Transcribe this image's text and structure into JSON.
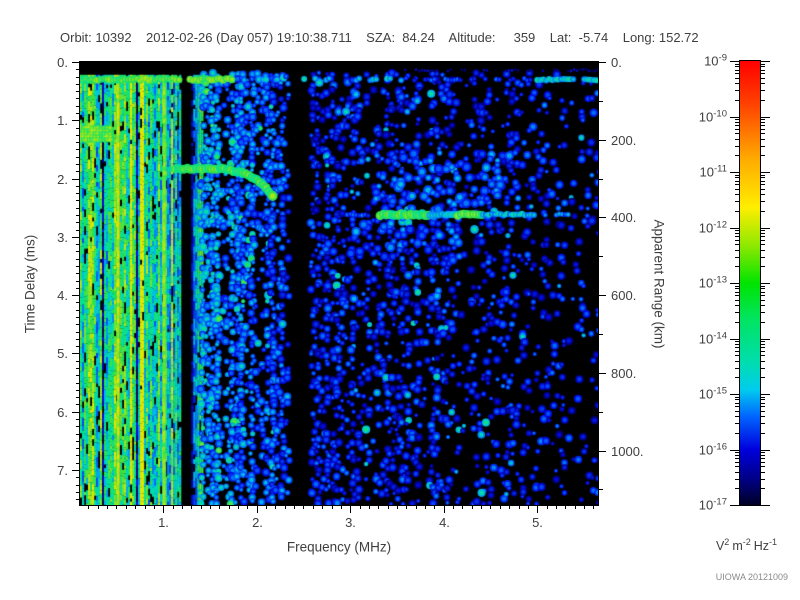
{
  "header": {
    "text": "Orbit: 10392    2012-02-26 (Day 057) 19:10:38.711    SZA:  84.24    Altitude:     359    Lat:  -5.74    Long: 152.72",
    "fields": {
      "orbit": "10392",
      "date": "2012-02-26",
      "day": "057",
      "time": "19:10:38.711",
      "sza": "84.24",
      "altitude": "359",
      "lat": "-5.74",
      "long": "152.72"
    }
  },
  "footer": {
    "watermark": "UIOWA 20121009"
  },
  "chart_data": {
    "type": "heatmap",
    "subtype": "radar-sounder-ionogram-spectrogram",
    "x_axis": {
      "label": "Frequency (MHz)",
      "range": [
        0.11,
        5.65
      ],
      "major_ticks": [
        {
          "v": 1,
          "t": "1."
        },
        {
          "v": 2,
          "t": "2."
        },
        {
          "v": 3,
          "t": "3."
        },
        {
          "v": 4,
          "t": "4."
        },
        {
          "v": 5,
          "t": "5."
        }
      ],
      "minor_step": 0.1
    },
    "y_axis": {
      "label": "Time Delay (ms)",
      "range": [
        0,
        7.6
      ],
      "direction": "down",
      "major_ticks": [
        {
          "v": 0,
          "t": "0."
        },
        {
          "v": 1,
          "t": "1."
        },
        {
          "v": 2,
          "t": "2."
        },
        {
          "v": 3,
          "t": "3."
        },
        {
          "v": 4,
          "t": "4."
        },
        {
          "v": 5,
          "t": "5."
        },
        {
          "v": 6,
          "t": "6."
        },
        {
          "v": 7,
          "t": "7."
        }
      ],
      "minor_step": 0.125
    },
    "r_axis": {
      "label": "Apparent Range (km)",
      "km_per_ms": 150,
      "range": [
        0,
        1140
      ],
      "major_ticks": [
        {
          "v": 0,
          "t": "0."
        },
        {
          "v": 200,
          "t": "200."
        },
        {
          "v": 400,
          "t": "400."
        },
        {
          "v": 600,
          "t": "600."
        },
        {
          "v": 800,
          "t": "800."
        },
        {
          "v": 1000,
          "t": "1000."
        }
      ],
      "minor_step": 100
    },
    "colorbar": {
      "scale": "log",
      "max": "1e-9",
      "min": "1e-17",
      "tick_exponents": [
        -9,
        -10,
        -11,
        -12,
        -13,
        -14,
        -15,
        -16,
        -17
      ],
      "units_parts": [
        {
          "base": "V",
          "exp": "2"
        },
        {
          "base": "m",
          "exp": "-2"
        },
        {
          "base": "Hz",
          "exp": "-1"
        }
      ],
      "stops": [
        {
          "p": 0.0,
          "c": "#ff0000"
        },
        {
          "p": 0.1,
          "c": "#ff4400"
        },
        {
          "p": 0.22,
          "c": "#ffaa00"
        },
        {
          "p": 0.33,
          "c": "#ffee00"
        },
        {
          "p": 0.42,
          "c": "#88e800"
        },
        {
          "p": 0.5,
          "c": "#00e400"
        },
        {
          "p": 0.58,
          "c": "#00e460"
        },
        {
          "p": 0.68,
          "c": "#00ddb0"
        },
        {
          "p": 0.74,
          "c": "#00ccee"
        },
        {
          "p": 0.8,
          "c": "#0066ff"
        },
        {
          "p": 0.875,
          "c": "#0000dd"
        },
        {
          "p": 0.94,
          "c": "#000088"
        },
        {
          "p": 1.0,
          "c": "#000025"
        }
      ]
    },
    "background": "#000000",
    "features": [
      {
        "kind": "band",
        "f": [
          0.11,
          1.02
        ],
        "t": [
          0.22,
          7.6
        ],
        "level": 0.7,
        "note": "intense broadband noise below 1 MHz"
      },
      {
        "kind": "band",
        "f": [
          1.02,
          1.18
        ],
        "t": [
          0.22,
          7.6
        ],
        "level": 0.58
      },
      {
        "kind": "band",
        "f": [
          1.3,
          1.42
        ],
        "t": [
          0.22,
          7.6
        ],
        "level": 0.58
      },
      {
        "kind": "speckle",
        "f": [
          1.42,
          2.36
        ],
        "t": [
          0.22,
          7.6
        ],
        "density": 0.62,
        "level": 0.34,
        "grad": 0.15
      },
      {
        "kind": "speckle",
        "f": [
          2.6,
          5.65
        ],
        "t": [
          0.22,
          7.6
        ],
        "density": 0.42,
        "level": 0.29,
        "falloff": 0.72
      },
      {
        "kind": "vline",
        "f": 0.52,
        "level": 0.92,
        "note": "interference line"
      },
      {
        "kind": "vline",
        "f": 1.01,
        "level": 0.86,
        "note": "interference line"
      },
      {
        "kind": "cluster",
        "f": [
          3.3,
          4.8
        ],
        "t": [
          1.6,
          2.6
        ],
        "density": 0.38,
        "level": 0.4
      },
      {
        "kind": "cluster",
        "f": [
          3.0,
          4.2
        ],
        "t": [
          2.7,
          3.5
        ],
        "density": 0.28,
        "level": 0.38
      },
      {
        "kind": "hline",
        "t": 0.14,
        "f": [
          3.5,
          5.65
        ],
        "level": 0.17,
        "thick": 3,
        "dash": 0.25
      },
      {
        "kind": "hline",
        "t": 0.3,
        "f": [
          0.11,
          1.78
        ],
        "level": 0.82,
        "thick": 7,
        "dash": 0.05,
        "note": "transmitter pulse line"
      },
      {
        "kind": "hline",
        "t": 0.3,
        "f": [
          1.78,
          3.6
        ],
        "level": 0.52,
        "thick": 6,
        "dash": 0.38
      },
      {
        "kind": "hline",
        "t": 0.3,
        "f": [
          3.6,
          5.0
        ],
        "level": 0.32,
        "thick": 5,
        "dash": 0.4
      },
      {
        "kind": "hline",
        "t": 0.3,
        "f": [
          5.0,
          5.65
        ],
        "level": 0.58,
        "thick": 6,
        "dash": 0.05
      },
      {
        "kind": "patch",
        "f": [
          0.11,
          0.45
        ],
        "t": [
          1.13,
          1.34
        ],
        "level": 0.85
      },
      {
        "kind": "trace",
        "pts": [
          [
            1.13,
            1.83
          ],
          [
            1.62,
            1.83
          ],
          [
            1.85,
            1.9
          ],
          [
            2.0,
            2.02
          ],
          [
            2.1,
            2.16
          ],
          [
            2.17,
            2.3
          ]
        ],
        "level": 0.78,
        "thick": 9,
        "note": "ionospheric echo trace"
      },
      {
        "kind": "hline",
        "t": 2.62,
        "f": [
          2.85,
          3.32
        ],
        "level": 0.34,
        "thick": 5,
        "dash": 0.2
      },
      {
        "kind": "hline",
        "t": 2.62,
        "f": [
          3.32,
          3.85
        ],
        "level": 0.78,
        "thick": 9,
        "dash": 0
      },
      {
        "kind": "hline",
        "t": 2.62,
        "f": [
          3.85,
          4.15
        ],
        "level": 0.58,
        "thick": 7,
        "dash": 0
      },
      {
        "kind": "hline",
        "t": 2.62,
        "f": [
          4.15,
          4.42
        ],
        "level": 0.8,
        "thick": 8,
        "dash": 0
      },
      {
        "kind": "hline",
        "t": 2.62,
        "f": [
          4.42,
          5.0
        ],
        "level": 0.55,
        "thick": 6,
        "dash": 0.1
      },
      {
        "kind": "hline",
        "t": 2.62,
        "f": [
          5.0,
          5.65
        ],
        "level": 0.42,
        "thick": 5,
        "dash": 0.2
      }
    ]
  }
}
